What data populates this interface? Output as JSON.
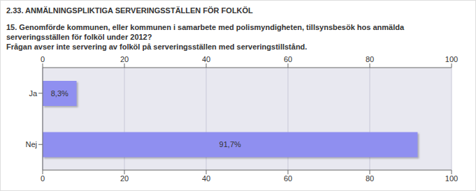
{
  "chart_data": {
    "type": "bar",
    "title": "2.33. ANMÄLNINGSPLIKTIGA SERVERINGSSTÄLLEN FÖR FOLKÖL",
    "subtitle": "15. Genomförde kommunen, eller kommunen i samarbete med polismyndigheten, tillsynsbesök hos anmälda serveringsställen för folköl under 2012?",
    "annotations": [
      "Frågan avser inte servering av folköl på serveringsställen med serveringstillstånd."
    ],
    "categories": [
      "Ja",
      "Nej"
    ],
    "values": [
      8.3,
      91.7
    ],
    "value_labels": [
      "8,3%",
      "91,7%"
    ],
    "data_labels": true,
    "orientation": "horizontal",
    "color": "#8f8ff0",
    "xlim": [
      0,
      100
    ],
    "xticks": [
      0,
      20,
      40,
      60,
      80,
      100
    ],
    "grid": true
  }
}
